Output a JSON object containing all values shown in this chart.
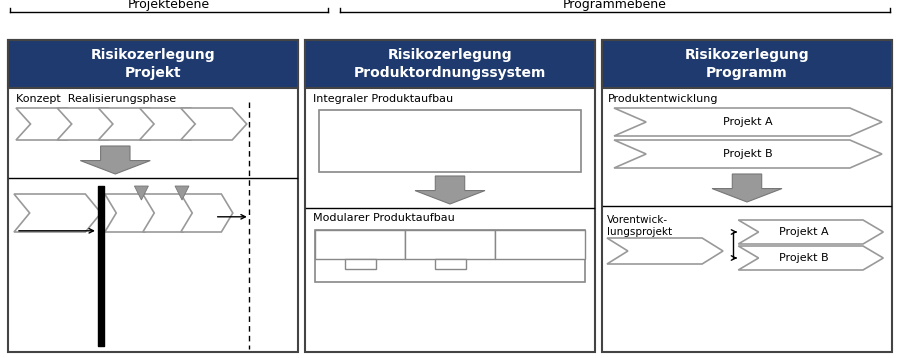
{
  "bg_color": "#ffffff",
  "header_color": "#1e3a6e",
  "header_text_color": "#ffffff",
  "projektebene_label": "Projektebene",
  "programmebene_label": "Programmebene",
  "col1_title": "Risikozerlegung\nProjekt",
  "col2_title_full": "Risikozerlegung\nProduktordnungssystem",
  "col3_title": "Risikozerlegung\nProgramm",
  "label_konzept": "Konzept  Realisierungsphase",
  "label_integral": "Integraler Produktaufbau",
  "label_modular": "Modularer Produktaufbau",
  "label_produktentwicklung": "Produktentwicklung",
  "label_vorentwick": "Vorentwick-\nlungsprojekt",
  "label_projektA1": "Projekt A",
  "label_projektB1": "Projekt B",
  "label_projektA2": "Projekt A",
  "label_projektB2": "Projekt B",
  "gray_arrow": "#999999",
  "gray_edge": "#888888",
  "dark_gray_arrow": "#777777"
}
